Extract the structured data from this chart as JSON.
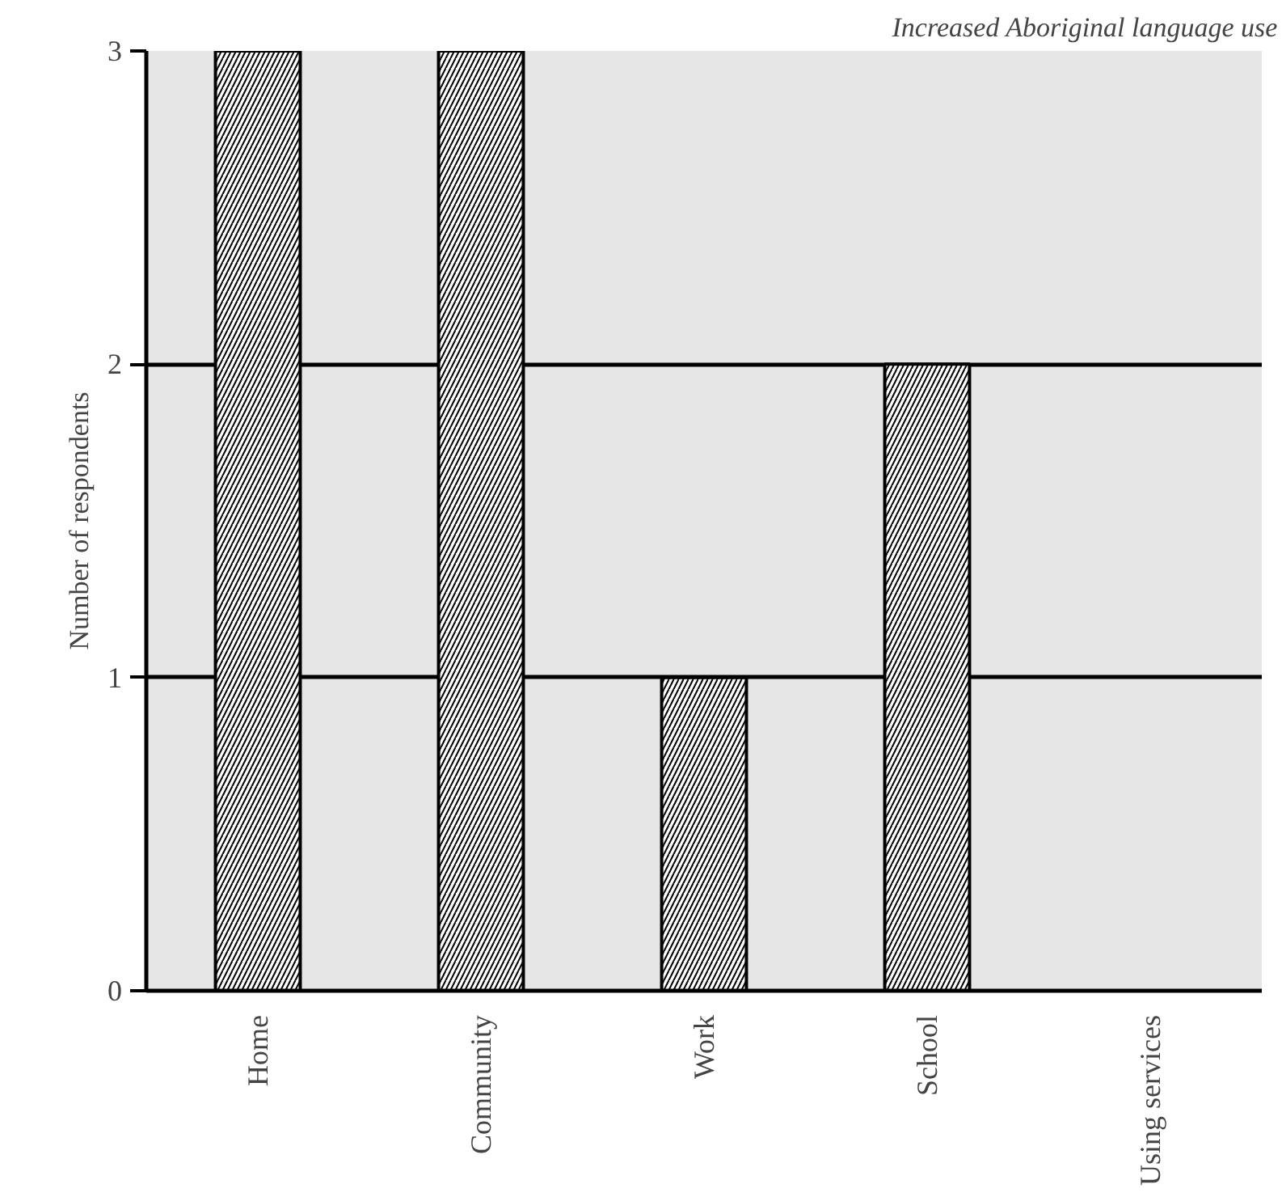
{
  "chart_data": {
    "type": "bar",
    "title": "Increased Aboriginal language use",
    "ylabel": "Number of respondents",
    "categories": [
      "Home",
      "Community",
      "Work",
      "School",
      "Using services"
    ],
    "values": [
      3,
      3,
      1,
      2,
      0
    ],
    "color": "#ffffff",
    "ylim": [
      0,
      3
    ],
    "yticks": [
      0,
      1,
      2,
      3
    ],
    "grid": "y"
  }
}
